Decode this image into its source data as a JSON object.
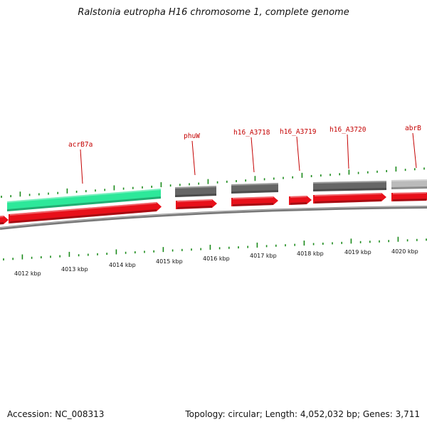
{
  "title": "Ralstonia eutropha H16 chromosome 1, complete genome",
  "footer": {
    "accession": "Accession: NC_008313",
    "summary": "Topology: circular; Length: 4,052,032 bp; Genes: 3,711"
  },
  "colors": {
    "cds_forward": "#e8101a",
    "gene_outer": "#666666",
    "gene_highlight": "#2de89a",
    "gene_light": "#bbbbbb",
    "label": "#c40000",
    "tick": "#1a8a1a",
    "backbone": "#777777"
  },
  "genes": [
    {
      "label": "acrB7a"
    },
    {
      "label": "phuW"
    },
    {
      "label": "h16_A3718"
    },
    {
      "label": "h16_A3719"
    },
    {
      "label": "h16_A3720"
    },
    {
      "label": "abrB"
    }
  ],
  "kbp_labels": [
    "4012 kbp",
    "4013 kbp",
    "4014 kbp",
    "4015 kbp",
    "4016 kbp",
    "4017 kbp",
    "4018 kbp",
    "4019 kbp",
    "4020 kbp"
  ]
}
